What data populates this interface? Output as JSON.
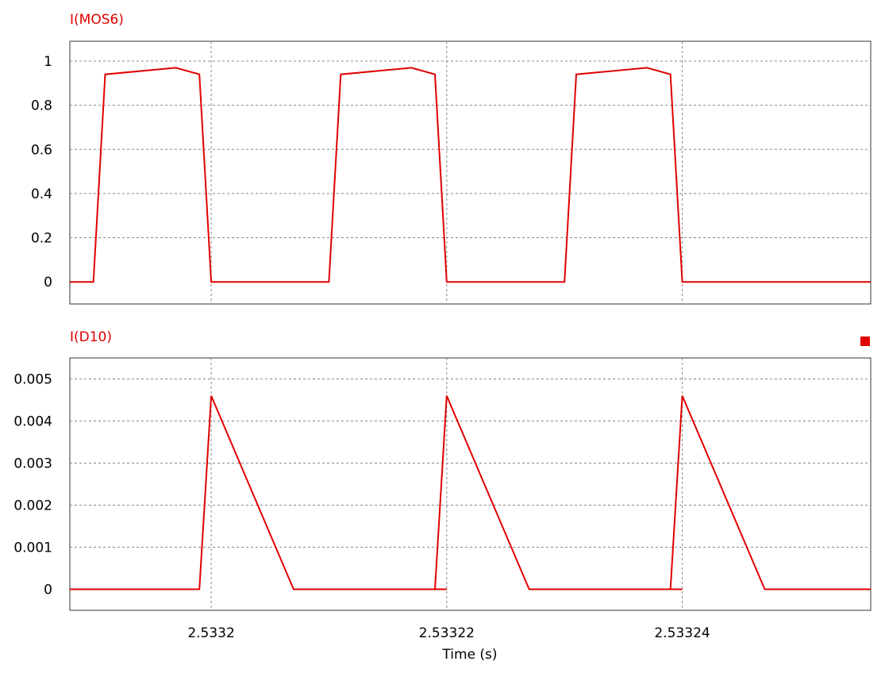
{
  "chart_data": [
    {
      "type": "line",
      "title": "I(MOS6)",
      "xlabel": "",
      "ylabel": "",
      "xlim": [
        2.533188,
        2.533256
      ],
      "ylim": [
        -0.1,
        1.09
      ],
      "y_ticks": [
        {
          "value": 0,
          "label": "0"
        },
        {
          "value": 0.2,
          "label": "0.2"
        },
        {
          "value": 0.4,
          "label": "0.4"
        },
        {
          "value": 0.6,
          "label": "0.6"
        },
        {
          "value": 0.8,
          "label": "0.8"
        },
        {
          "value": 1,
          "label": "1"
        }
      ],
      "x_grid": [
        2.5332,
        2.53322,
        2.53324
      ],
      "x_tick_labels_shown": false,
      "grid": true,
      "color": "#e00000",
      "series": [
        {
          "x": [
            2.533188,
            2.53319,
            2.533191,
            2.533197,
            2.533199,
            2.5332,
            2.53321,
            2.533211,
            2.533217,
            2.533219,
            2.53322,
            2.53323,
            2.533231,
            2.533237,
            2.533239,
            2.53324,
            2.533256
          ],
          "y": [
            0,
            0,
            0.94,
            0.97,
            0.94,
            0,
            0,
            0.94,
            0.97,
            0.94,
            0,
            0,
            0.94,
            0.97,
            0.94,
            0,
            0
          ]
        }
      ]
    },
    {
      "type": "line",
      "title": "I(D10)",
      "xlabel": "Time (s)",
      "ylabel": "",
      "xlim": [
        2.533188,
        2.533256
      ],
      "ylim": [
        -0.0005,
        0.0055
      ],
      "y_ticks": [
        {
          "value": 0,
          "label": "0"
        },
        {
          "value": 0.001,
          "label": "0.001"
        },
        {
          "value": 0.002,
          "label": "0.002"
        },
        {
          "value": 0.003,
          "label": "0.003"
        },
        {
          "value": 0.004,
          "label": "0.004"
        },
        {
          "value": 0.005,
          "label": "0.005"
        }
      ],
      "x_ticks": [
        {
          "value": 2.5332,
          "label": "2.5332"
        },
        {
          "value": 2.53322,
          "label": "2.53322"
        },
        {
          "value": 2.53324,
          "label": "2.53324"
        }
      ],
      "grid": true,
      "color": "#e00000",
      "legend_marker": "top-right",
      "series": [
        {
          "x": [
            2.533188,
            2.533199,
            2.5332,
            2.533207,
            2.53322,
            2.533219,
            2.53322,
            2.533227,
            2.53324,
            2.533239,
            2.53324,
            2.533247,
            2.533256
          ],
          "y": [
            0,
            0,
            0.0046,
            0,
            0,
            0,
            0.0046,
            0,
            0,
            0,
            0.0046,
            0,
            0
          ]
        }
      ]
    }
  ]
}
